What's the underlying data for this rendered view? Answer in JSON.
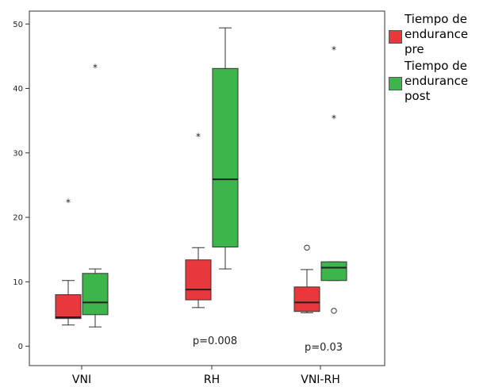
{
  "chart_data": {
    "type": "box",
    "categories": [
      "VNI",
      "RH",
      "VNI-RH"
    ],
    "ylim": [
      -3,
      52
    ],
    "yticks": [
      0,
      10,
      20,
      30,
      40,
      50
    ],
    "grid": false,
    "legend_position": "right",
    "series": [
      {
        "name": "Tiempo de endurance pre",
        "color": "#e8383b",
        "boxes": [
          {
            "category": "VNI",
            "whisker_low": 3.3,
            "q1": 4.3,
            "median": 4.5,
            "q3": 8.0,
            "whisker_high": 10.2,
            "outliers": [],
            "extremes": [
              22.3
            ]
          },
          {
            "category": "RH",
            "whisker_low": 6.0,
            "q1": 7.2,
            "median": 8.8,
            "q3": 13.4,
            "whisker_high": 15.3,
            "outliers": [],
            "extremes": [
              32.5
            ]
          },
          {
            "category": "VNI-RH",
            "whisker_low": 5.2,
            "q1": 5.4,
            "median": 6.8,
            "q3": 9.2,
            "whisker_high": 11.9,
            "outliers": [
              15.3
            ],
            "extremes": []
          }
        ]
      },
      {
        "name": "Tiempo de endurance post",
        "color": "#3db54a",
        "boxes": [
          {
            "category": "VNI",
            "whisker_low": 3.0,
            "q1": 4.9,
            "median": 6.8,
            "q3": 11.3,
            "whisker_high": 12.0,
            "outliers": [],
            "extremes": [
              43.2
            ]
          },
          {
            "category": "RH",
            "whisker_low": 12.0,
            "q1": 15.4,
            "median": 25.9,
            "q3": 43.1,
            "whisker_high": 49.4,
            "outliers": [],
            "extremes": []
          },
          {
            "category": "VNI-RH",
            "whisker_low": 10.2,
            "q1": 10.2,
            "median": 12.2,
            "q3": 13.1,
            "whisker_high": 13.1,
            "outliers": [
              5.5
            ],
            "extremes": [
              35.3,
              46.0
            ]
          }
        ]
      }
    ],
    "annotations": [
      {
        "text": "p=0.008",
        "category": "RH",
        "y": 0.8
      },
      {
        "text": "p=0.03",
        "category": "VNI-RH",
        "y": -0.2
      }
    ]
  },
  "legend": {
    "items": [
      {
        "label": "Tiempo de\nendurance\npre",
        "color": "#e8383b"
      },
      {
        "label": "Tiempo de\nendurance\npost",
        "color": "#3db54a"
      }
    ]
  }
}
